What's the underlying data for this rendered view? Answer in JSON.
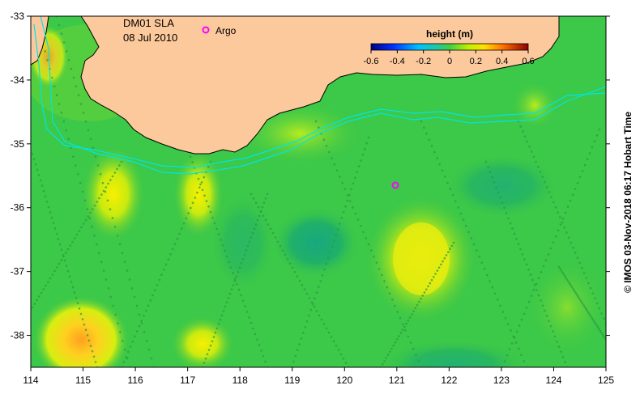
{
  "title": {
    "product": "DM01 SLA",
    "date": "08 Jul 2010"
  },
  "legend": {
    "argo_label": "Argo"
  },
  "colorbar": {
    "title": "height (m)",
    "ticks": [
      "-0.6",
      "-0.4",
      "-0.2",
      "0",
      "0.2",
      "0.4",
      "0.6"
    ],
    "range": [
      -0.6,
      0.6
    ]
  },
  "axes": {
    "x_ticks": [
      "114",
      "115",
      "116",
      "117",
      "118",
      "119",
      "120",
      "121",
      "122",
      "123",
      "124",
      "125"
    ],
    "y_ticks": [
      "-33",
      "-34",
      "-35",
      "-36",
      "-37",
      "-38"
    ],
    "lon_range": [
      114,
      125
    ],
    "lat_range": [
      -38.5,
      -33
    ]
  },
  "credit": "© IMOS 03-Nov-2018 06:17 Hobart Time",
  "colors": {
    "land": "#fcc99c",
    "sea_base": "#3cc848",
    "contour": "#00e5e5",
    "argo": "#ff00ff"
  },
  "argo_float": {
    "lon": 121.0,
    "lat": -35.63
  }
}
